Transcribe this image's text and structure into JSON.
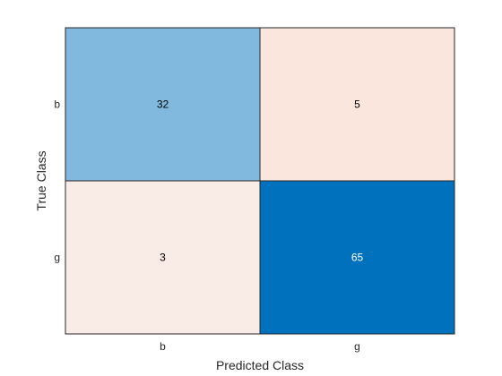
{
  "chart_data": {
    "type": "heatmap",
    "title": "",
    "xlabel": "Predicted Class",
    "ylabel": "True Class",
    "x_categories": [
      "b",
      "g"
    ],
    "y_categories": [
      "b",
      "g"
    ],
    "values": [
      [
        32,
        5
      ],
      [
        3,
        65
      ]
    ],
    "grid": false,
    "legend": "none",
    "colors": {
      "diagonal_high": "#0072bd",
      "diagonal_low": "#80b9dd",
      "offdiag_base": "#f9ece7",
      "offdiag_high": "#fbe6de",
      "edge": "#262626",
      "text_dark": "#000000",
      "text_light": "#ffffff"
    }
  }
}
